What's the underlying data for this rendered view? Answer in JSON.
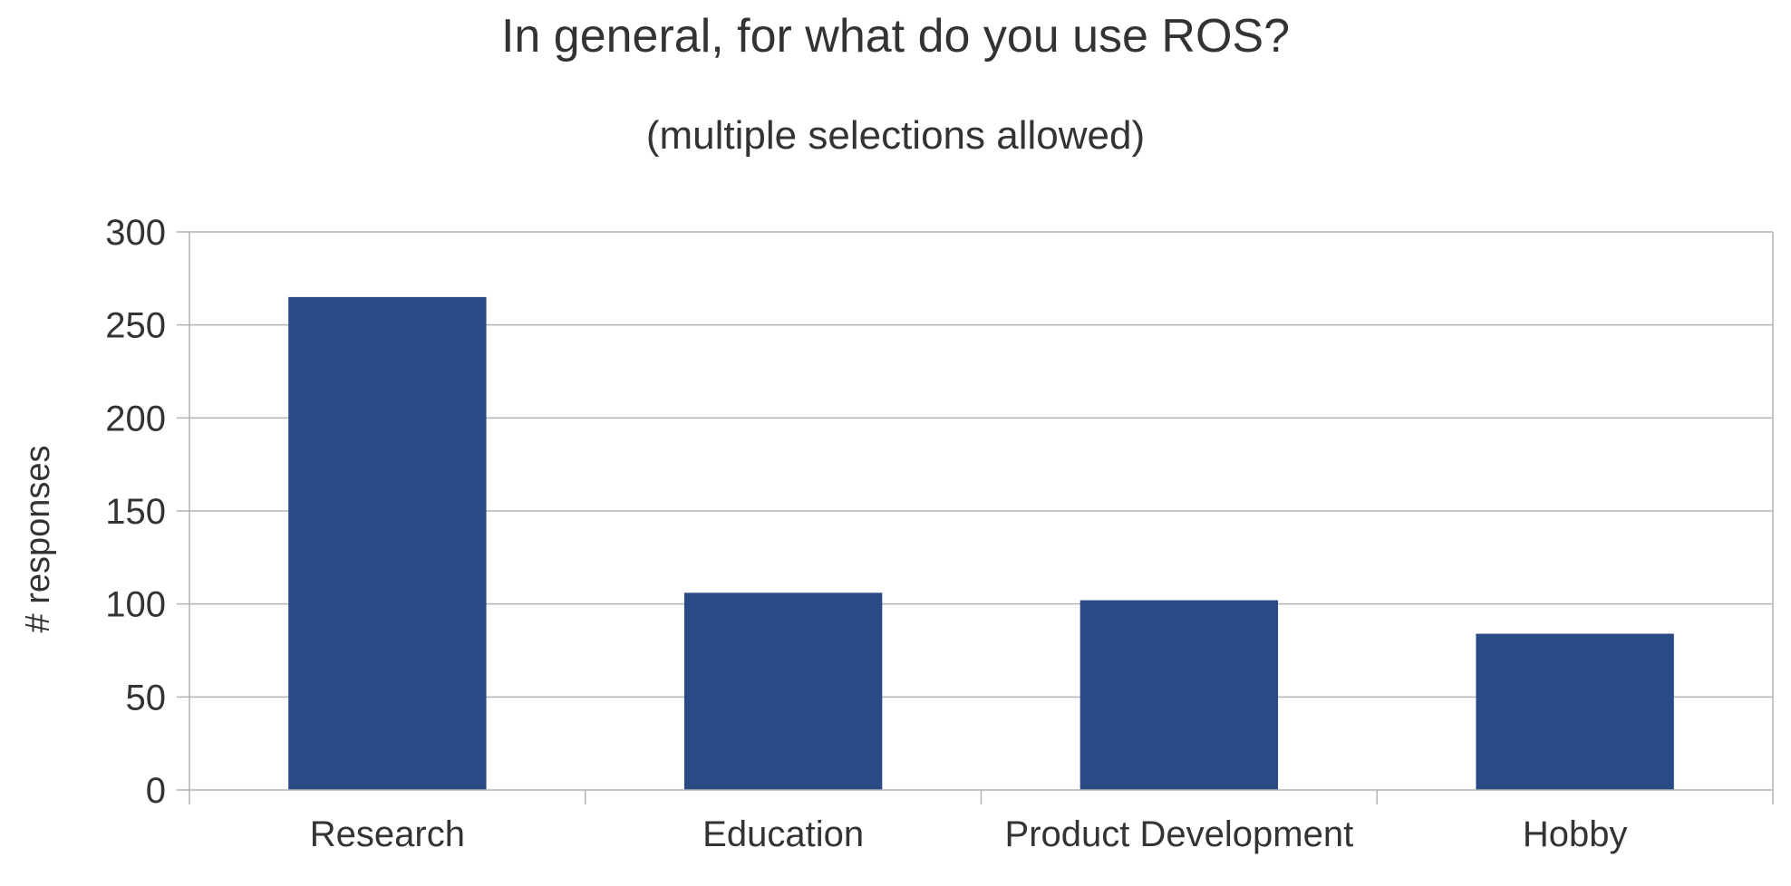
{
  "chart_data": {
    "type": "bar",
    "title": "In general, for what do you use ROS?",
    "subtitle": "(multiple selections allowed)",
    "xlabel": "",
    "ylabel": "# responses",
    "categories": [
      "Research",
      "Education",
      "Product Development",
      "Hobby"
    ],
    "values": [
      265,
      106,
      102,
      84
    ],
    "ylim": [
      0,
      300
    ],
    "yticks": [
      0,
      50,
      100,
      150,
      200,
      250,
      300
    ],
    "grid": true,
    "legend": "none",
    "colors": {
      "bar": "#294a84",
      "grid": "#b3b3b3",
      "axis": "#b3b3b3",
      "text": "#333333"
    }
  }
}
